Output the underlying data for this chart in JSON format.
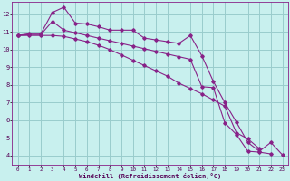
{
  "xlabel": "Windchill (Refroidissement éolien,°C)",
  "background_color": "#c8f0ee",
  "grid_color": "#99cccc",
  "line_color": "#882288",
  "xlim": [
    -0.5,
    23.5
  ],
  "ylim": [
    3.5,
    12.7
  ],
  "xticks": [
    0,
    1,
    2,
    3,
    4,
    5,
    6,
    7,
    8,
    9,
    10,
    11,
    12,
    13,
    14,
    15,
    16,
    17,
    18,
    19,
    20,
    21,
    22,
    23
  ],
  "yticks": [
    4,
    5,
    6,
    7,
    8,
    9,
    10,
    11,
    12
  ],
  "series": [
    {
      "x": [
        0,
        1,
        2,
        3,
        4,
        5,
        6,
        7,
        8,
        9,
        10,
        11,
        12,
        13,
        14,
        15,
        16,
        17,
        18,
        19,
        20,
        21,
        22,
        23
      ],
      "y": [
        10.8,
        10.9,
        10.9,
        12.1,
        12.4,
        11.5,
        11.45,
        11.3,
        11.1,
        11.1,
        11.1,
        10.65,
        10.55,
        10.45,
        10.35,
        10.8,
        9.65,
        8.2,
        7.0,
        5.9,
        4.75,
        4.25,
        4.75,
        4.05
      ]
    },
    {
      "x": [
        0,
        1,
        2,
        3,
        4,
        5,
        6,
        7,
        8,
        9,
        10,
        11,
        12,
        13,
        14,
        15,
        16,
        17,
        18,
        19,
        20,
        21,
        22
      ],
      "y": [
        10.8,
        10.85,
        10.85,
        11.6,
        11.1,
        10.95,
        10.8,
        10.65,
        10.5,
        10.35,
        10.2,
        10.05,
        9.9,
        9.75,
        9.6,
        9.45,
        7.9,
        7.85,
        5.85,
        5.2,
        4.25,
        4.2,
        4.1
      ]
    },
    {
      "x": [
        0,
        1,
        2,
        3,
        4,
        5,
        6,
        7,
        8,
        9,
        10,
        11,
        12,
        13,
        14,
        15,
        16,
        17,
        18,
        19,
        20,
        21
      ],
      "y": [
        10.8,
        10.8,
        10.8,
        10.8,
        10.75,
        10.6,
        10.45,
        10.25,
        10.0,
        9.7,
        9.4,
        9.1,
        8.8,
        8.5,
        8.1,
        7.8,
        7.5,
        7.15,
        6.8,
        5.3,
        4.95,
        4.4
      ]
    }
  ]
}
